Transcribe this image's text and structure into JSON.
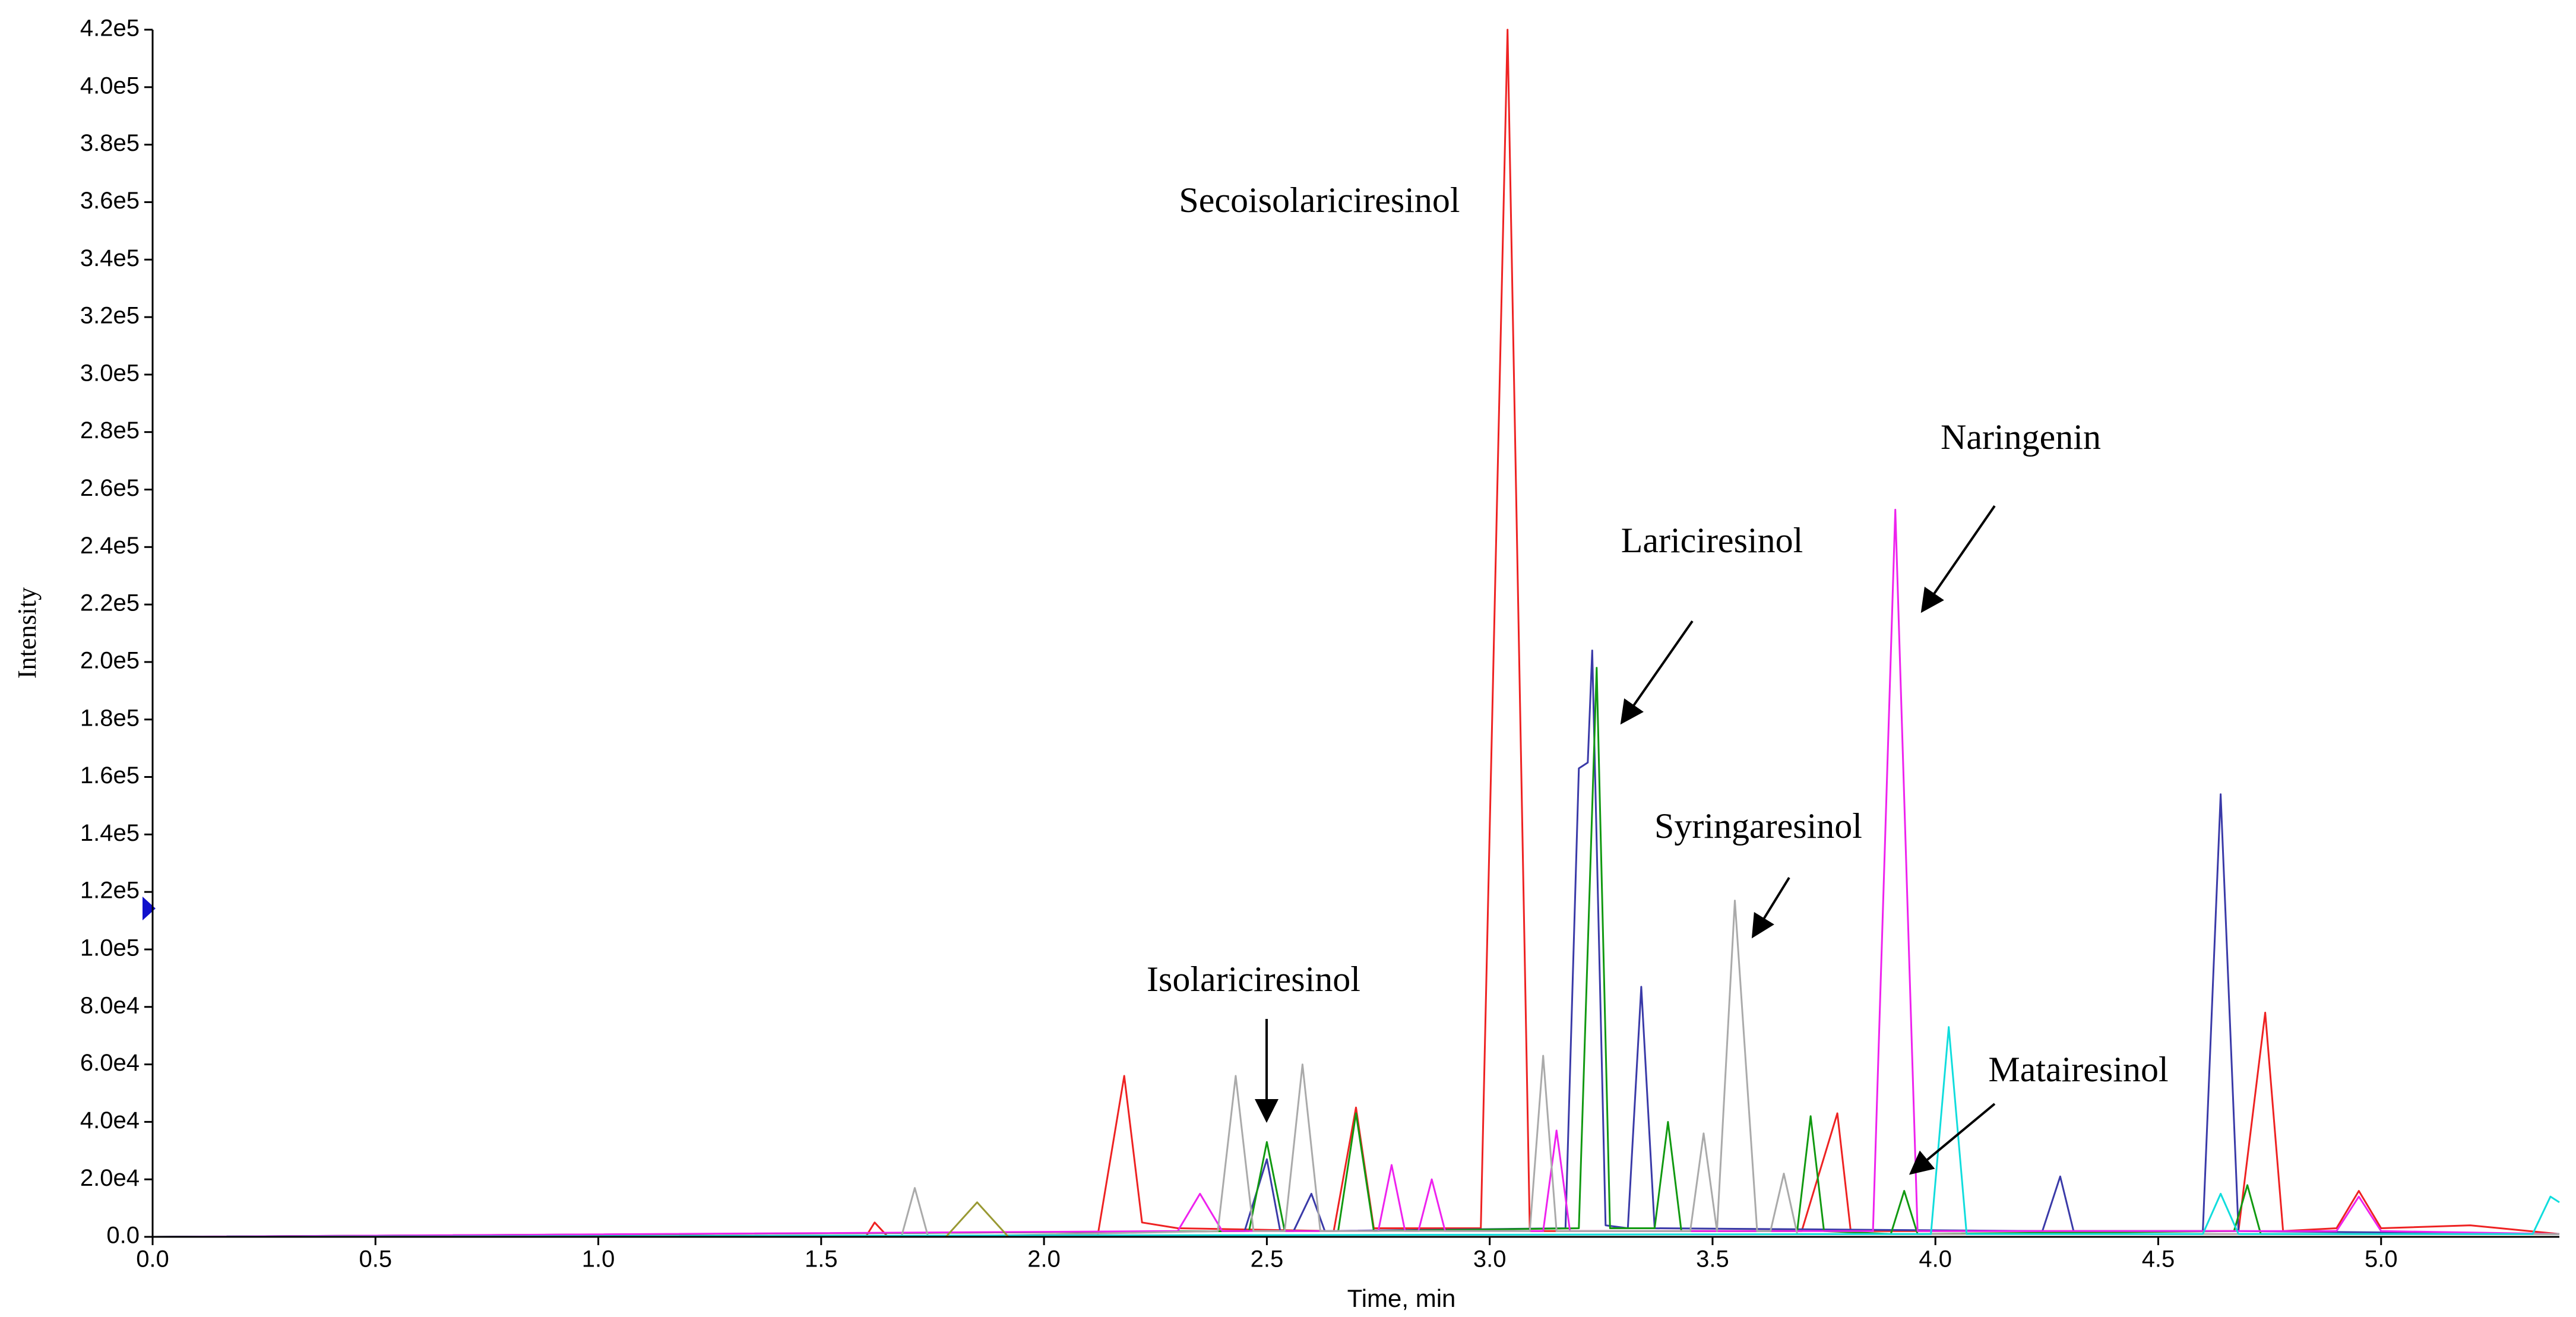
{
  "chart_data": {
    "type": "line",
    "xlabel": "Time, min",
    "ylabel": "Intensity",
    "xlim": [
      0,
      5.4
    ],
    "ylim": [
      0,
      420000
    ],
    "xticks": [
      {
        "value": 0,
        "label": "0.0"
      },
      0.5,
      {
        "value": 1,
        "label": "1.0"
      },
      1.5,
      {
        "value": 2,
        "label": "2.0"
      },
      2.5,
      {
        "value": 3,
        "label": "3.0"
      },
      3.5,
      {
        "value": 4,
        "label": "4.0"
      },
      4.5,
      {
        "value": 5,
        "label": "5.0"
      }
    ],
    "yticks": [
      {
        "value": 0,
        "label": "0.0"
      },
      {
        "value": 20000,
        "label": "2.0e4"
      },
      {
        "value": 40000,
        "label": "4.0e4"
      },
      {
        "value": 60000,
        "label": "6.0e4"
      },
      {
        "value": 80000,
        "label": "8.0e4"
      },
      {
        "value": 100000,
        "label": "1.0e5"
      },
      {
        "value": 120000,
        "label": "1.2e5"
      },
      {
        "value": 140000,
        "label": "1.4e5"
      },
      {
        "value": 160000,
        "label": "1.6e5"
      },
      {
        "value": 180000,
        "label": "1.8e5"
      },
      {
        "value": 200000,
        "label": "2.0e5"
      },
      {
        "value": 220000,
        "label": "2.2e5"
      },
      {
        "value": 240000,
        "label": "2.4e5"
      },
      {
        "value": 260000,
        "label": "2.6e5"
      },
      {
        "value": 280000,
        "label": "2.8e5"
      },
      {
        "value": 300000,
        "label": "3.0e5"
      },
      {
        "value": 320000,
        "label": "3.2e5"
      },
      {
        "value": 340000,
        "label": "3.4e5"
      },
      {
        "value": 360000,
        "label": "3.6e5"
      },
      {
        "value": 380000,
        "label": "3.8e5"
      },
      {
        "value": 400000,
        "label": "4.0e5"
      },
      {
        "value": 420000,
        "label": "4.2e5"
      }
    ],
    "annotations": [
      "Secoisolariciresinol",
      "Lariciresinol",
      "Naringenin",
      "Syringaresinol",
      "Isolariciresinol",
      "Matairesinol"
    ],
    "series": [
      {
        "color": "#ee2222",
        "x": [
          0,
          1.6,
          1.62,
          1.65,
          2.12,
          2.18,
          2.22,
          2.3,
          2.65,
          2.7,
          2.74,
          2.98,
          3.04,
          3.09,
          3.7,
          3.78,
          3.81,
          4.68,
          4.74,
          4.78,
          4.9,
          4.95,
          5.0,
          5.2,
          5.4
        ],
        "values": [
          0,
          0,
          5000,
          0,
          0,
          56000,
          5000,
          3000,
          2000,
          45000,
          3000,
          3000,
          420000,
          2000,
          2000,
          43000,
          2000,
          2000,
          78000,
          2000,
          3000,
          16000,
          3000,
          4000,
          1000
        ]
      },
      {
        "color": "#3a3aa8",
        "x": [
          0,
          2.45,
          2.5,
          2.53,
          2.56,
          2.6,
          2.63,
          3.17,
          3.2,
          3.22,
          3.23,
          3.26,
          3.31,
          3.34,
          3.37,
          4.24,
          4.28,
          4.31,
          4.6,
          4.64,
          4.68,
          5.4
        ],
        "values": [
          0,
          2000,
          27000,
          2000,
          2000,
          15000,
          2000,
          3000,
          163000,
          165000,
          204000,
          4000,
          3000,
          87000,
          3000,
          2000,
          21000,
          2000,
          2000,
          154000,
          2000,
          1000
        ]
      },
      {
        "color": "#119911",
        "x": [
          0,
          2.46,
          2.5,
          2.54,
          2.66,
          2.7,
          2.74,
          3.2,
          3.24,
          3.27,
          3.37,
          3.4,
          3.43,
          3.69,
          3.72,
          3.75,
          3.9,
          3.93,
          3.96,
          4.67,
          4.7,
          4.73,
          5.4
        ],
        "values": [
          0,
          2000,
          33000,
          2000,
          2000,
          43000,
          2000,
          3000,
          198000,
          3000,
          3000,
          40000,
          2000,
          2000,
          42000,
          2000,
          1000,
          16000,
          1000,
          2000,
          18000,
          1000,
          1000
        ]
      },
      {
        "color": "#ee22ee",
        "x": [
          0,
          2.3,
          2.35,
          2.4,
          2.75,
          2.78,
          2.81,
          2.84,
          2.87,
          2.9,
          3.12,
          3.15,
          3.18,
          3.86,
          3.91,
          3.96,
          4.9,
          4.95,
          5.0,
          5.4
        ],
        "values": [
          0,
          2000,
          15000,
          2000,
          2000,
          25000,
          2000,
          2000,
          20000,
          2000,
          2000,
          37000,
          2000,
          2000,
          253000,
          2000,
          2000,
          14000,
          2000,
          1000
        ]
      },
      {
        "color": "#aaaaaa",
        "x": [
          0,
          1.68,
          1.71,
          1.74,
          2.39,
          2.43,
          2.47,
          2.54,
          2.58,
          2.62,
          3.09,
          3.12,
          3.15,
          3.45,
          3.48,
          3.51,
          3.55,
          3.6,
          3.63,
          3.66,
          3.69,
          5.4
        ],
        "values": [
          0,
          0,
          17000,
          0,
          2000,
          56000,
          2000,
          2000,
          60000,
          2000,
          2000,
          63000,
          2000,
          2000,
          36000,
          2000,
          117000,
          2000,
          2000,
          22000,
          1000,
          1000
        ]
      },
      {
        "color": "#11dddd",
        "x": [
          0,
          3.99,
          4.03,
          4.07,
          4.6,
          4.64,
          4.68,
          5.34,
          5.38,
          5.4
        ],
        "values": [
          0,
          1000,
          73000,
          1000,
          1000,
          15000,
          1000,
          1000,
          14000,
          12000
        ]
      },
      {
        "color": "#999933",
        "x": [
          0,
          1.78,
          1.85,
          1.92,
          5.4
        ],
        "values": [
          0,
          0,
          12000,
          0,
          0
        ]
      }
    ]
  }
}
